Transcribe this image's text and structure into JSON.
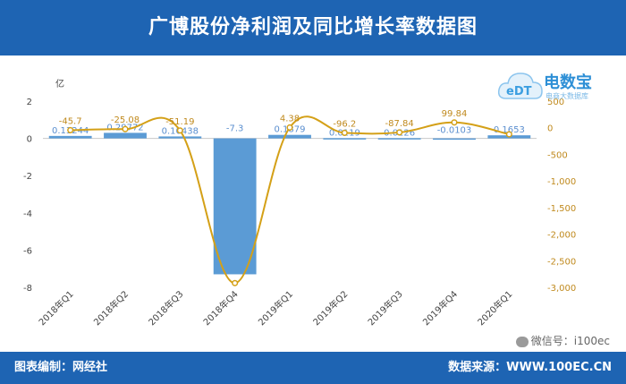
{
  "header": {
    "title": "广博股份净利润及同比增长率数据图"
  },
  "footer": {
    "left_label": "图表编制：网经社",
    "right_label": "数据来源：WWW.100EC.CN"
  },
  "watermark": {
    "brand_cn": "电数宝",
    "brand_sub": "电商大数据库",
    "brand_letters": "eDT",
    "wechat": "微信号：i100ec"
  },
  "colors": {
    "banner": "#1e64b3",
    "bar": "#5b9bd5",
    "line": "#d4a017",
    "text": "#444444"
  },
  "chart_data": {
    "type": "bar",
    "categories": [
      "2018年Q1",
      "2018年Q2",
      "2018年Q3",
      "2018年Q4",
      "2019年Q1",
      "2019年Q2",
      "2019年Q3",
      "2019年Q4",
      "2020年Q1"
    ],
    "left_unit": "亿",
    "left_ylim": [
      -8,
      2
    ],
    "left_ticks": [
      "2",
      "0",
      "-2",
      "-4",
      "-6",
      "-8"
    ],
    "right_ylim": [
      -3000,
      500
    ],
    "right_ticks": [
      "500",
      "0",
      "-500",
      "-1,000",
      "-1,500",
      "-2,000",
      "-2,500",
      "-3,000"
    ],
    "series": [
      {
        "kind": "bar",
        "values": [
          0.13244,
          0.29772,
          0.10438,
          -7.3,
          0.1879,
          0.0119,
          0.0126,
          -0.0103,
          0.1653
        ],
        "labels": [
          "0.13244",
          "0.29772",
          "0.10438",
          "-7.3",
          "0.1879",
          "0.0119",
          "0.0126",
          "-0.0103",
          "0.1653"
        ]
      },
      {
        "kind": "line",
        "values": [
          -45.7,
          -25.08,
          -51.19,
          -2920,
          4.38,
          -96.2,
          -87.84,
          99.84,
          -123
        ],
        "labels": [
          "-45.7",
          "-25.08",
          "-51.19",
          "",
          "4.38",
          "-96.2",
          "-87.84",
          "99.84",
          ""
        ]
      }
    ]
  }
}
